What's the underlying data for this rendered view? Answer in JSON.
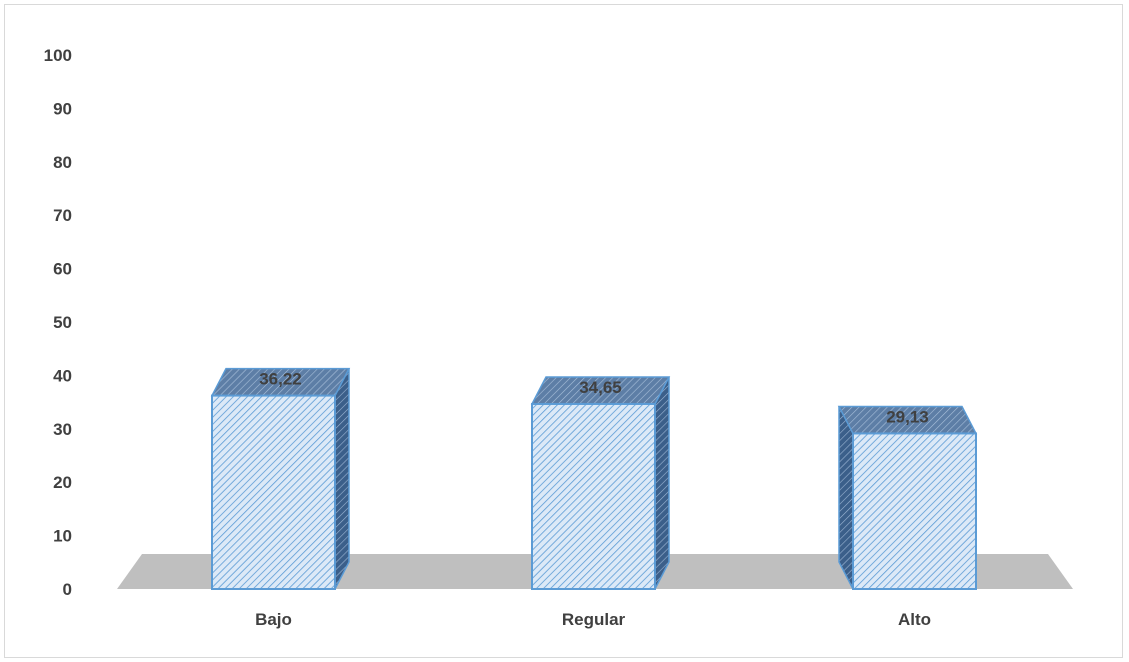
{
  "chart_data": {
    "type": "bar",
    "title": "",
    "xlabel": "",
    "ylabel": "",
    "categories": [
      "Bajo",
      "Regular",
      "Alto"
    ],
    "values": [
      36.22,
      34.65,
      29.13
    ],
    "value_labels": [
      "36,22",
      "34,65",
      "29,13"
    ],
    "ylim": [
      0,
      100
    ],
    "y_ticks": [
      0,
      10,
      20,
      30,
      40,
      50,
      60,
      70,
      80,
      90,
      100
    ],
    "grid": false,
    "legend": "none",
    "style": "3d-column",
    "colors": {
      "bar_fill": "#dce9f7",
      "bar_hatch": "#5b9bd5",
      "bar_border": "#5b9bd5",
      "bar_side": "#3b5f8a",
      "floor": "#bfbfbf",
      "text": "#404040"
    }
  }
}
